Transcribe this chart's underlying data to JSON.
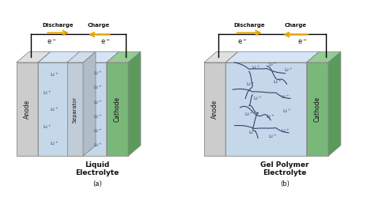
{
  "bg_color": "#ffffff",
  "anode_color": "#cccccc",
  "anode_top_color": "#e0e0e0",
  "anode_side_color": "#aaaaaa",
  "liquid_color": "#c5d8ea",
  "liquid_top_color": "#d5e5f5",
  "separator_color": "#c0ccd8",
  "separator_top_color": "#d0dce8",
  "separator_side_color": "#b0bcc8",
  "cathode_color": "#7ab87a",
  "cathode_top_color": "#95cc95",
  "cathode_side_color": "#5a9a5a",
  "arrow_color": "#e8a000",
  "text_color": "#111111",
  "li_color": "#1a3a6a",
  "chain_color": "#334466",
  "title_left": "Liquid\nElectrolyte",
  "title_right": "Gel Polymer\nElectrolyte",
  "label_a": "(a)",
  "label_b": "(b)"
}
